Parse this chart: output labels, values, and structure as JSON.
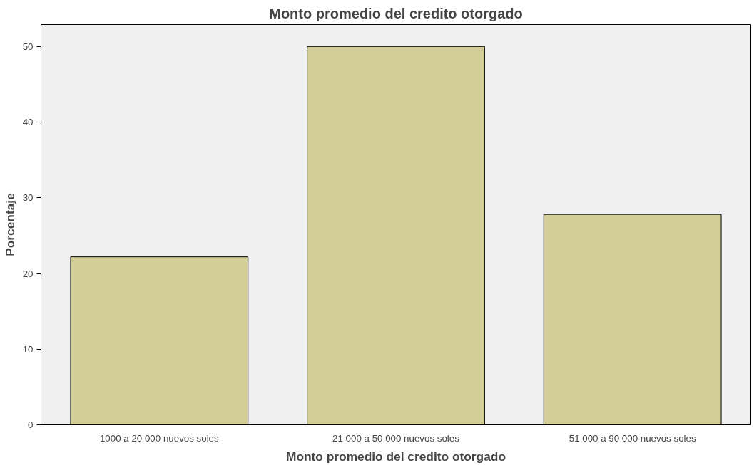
{
  "chart_data": {
    "type": "bar",
    "title": "Monto promedio del credito otorgado",
    "xlabel": "Monto promedio del credito otorgado",
    "ylabel": "Porcentaje",
    "categories": [
      "1000 a 20 000 nuevos soles",
      "21 000 a 50 000 nuevos soles",
      "51 000 a 90 000 nuevos soles"
    ],
    "values": [
      22.2,
      50.0,
      27.8
    ],
    "color": "#d3ce98",
    "ylim": [
      0,
      52.9
    ],
    "yticks": [
      0,
      10,
      20,
      30,
      40,
      50
    ],
    "grid": false
  }
}
